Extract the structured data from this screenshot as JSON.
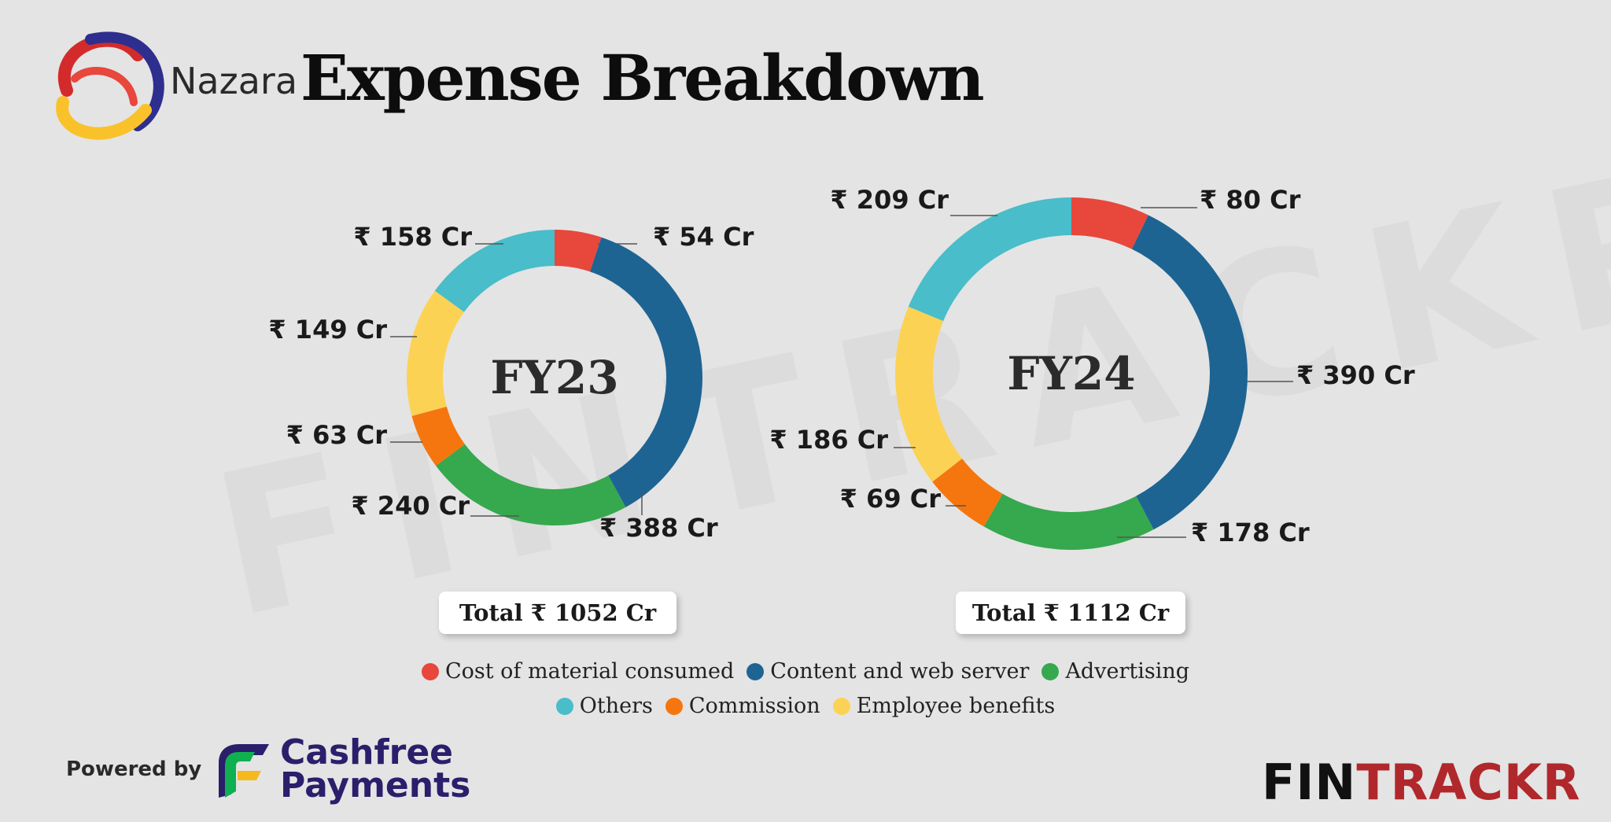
{
  "header": {
    "brand": "Nazara",
    "title": "Expense Breakdown"
  },
  "watermark": "FINTRACKR",
  "colors": {
    "cost_of_material": "#e8473c",
    "content_web_server": "#1d6493",
    "advertising": "#36a84e",
    "commission": "#f5760f",
    "employee_benefits": "#fcd255",
    "others": "#49bdc9"
  },
  "chart_data": [
    {
      "type": "pie",
      "donut": true,
      "center_label": "FY23",
      "slices": [
        {
          "name": "Cost of material consumed",
          "value": 54,
          "label": "₹ 54 Cr",
          "color": "#e8473c"
        },
        {
          "name": "Content and web server",
          "value": 388,
          "label": "₹ 388 Cr",
          "color": "#1d6493"
        },
        {
          "name": "Advertising",
          "value": 240,
          "label": "₹ 240 Cr",
          "color": "#36a84e"
        },
        {
          "name": "Commission",
          "value": 63,
          "label": "₹ 63 Cr",
          "color": "#f5760f"
        },
        {
          "name": "Employee benefits",
          "value": 149,
          "label": "₹ 149 Cr",
          "color": "#fcd255"
        },
        {
          "name": "Others",
          "value": 158,
          "label": "₹ 158 Cr",
          "color": "#49bdc9"
        }
      ],
      "total_label": "Total",
      "total_value": "₹ 1052 Cr"
    },
    {
      "type": "pie",
      "donut": true,
      "center_label": "FY24",
      "slices": [
        {
          "name": "Cost of material consumed",
          "value": 80,
          "label": "₹ 80 Cr",
          "color": "#e8473c"
        },
        {
          "name": "Content and web server",
          "value": 390,
          "label": "₹ 390 Cr",
          "color": "#1d6493"
        },
        {
          "name": "Advertising",
          "value": 178,
          "label": "₹ 178 Cr",
          "color": "#36a84e"
        },
        {
          "name": "Commission",
          "value": 69,
          "label": "₹ 69 Cr",
          "color": "#f5760f"
        },
        {
          "name": "Employee benefits",
          "value": 186,
          "label": "₹ 186 Cr",
          "color": "#fcd255"
        },
        {
          "name": "Others",
          "value": 209,
          "label": "₹ 209 Cr",
          "color": "#49bdc9"
        }
      ],
      "total_label": "Total",
      "total_value": "₹ 1112 Cr"
    }
  ],
  "legend": {
    "row1": [
      {
        "label": "Cost of material consumed",
        "color": "#e8473c"
      },
      {
        "label": "Content and web server",
        "color": "#1d6493"
      },
      {
        "label": "Advertising",
        "color": "#36a84e"
      }
    ],
    "row2": [
      {
        "label": "Others",
        "color": "#49bdc9"
      },
      {
        "label": "Commission",
        "color": "#f5760f"
      },
      {
        "label": "Employee benefits",
        "color": "#fcd255"
      }
    ]
  },
  "footer": {
    "powered_by": "Powered by",
    "partner_line1": "Cashfree",
    "partner_line2": "Payments",
    "fintrackr_a": "FIN",
    "fintrackr_b": "TRACKR"
  }
}
